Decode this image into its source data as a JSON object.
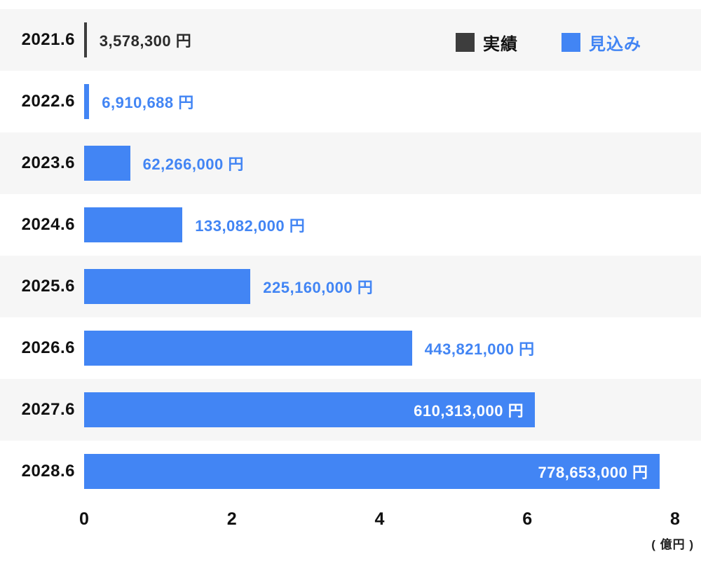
{
  "chart_data": {
    "type": "bar",
    "orientation": "horizontal",
    "title": "",
    "categories": [
      "2021.6",
      "2022.6",
      "2023.6",
      "2024.6",
      "2025.6",
      "2026.6",
      "2027.6",
      "2028.6"
    ],
    "values": [
      3578300,
      6910688,
      62266000,
      133082000,
      225160000,
      443821000,
      610313000,
      778653000
    ],
    "rows": [
      {
        "category": "2021.6",
        "value_yen": 3578300,
        "label": "3,578,300 円",
        "series": "実績",
        "label_position": "outside",
        "label_color_key": "label_actual"
      },
      {
        "category": "2022.6",
        "value_yen": 6910688,
        "label": "6,910,688 円",
        "series": "見込み",
        "label_position": "outside",
        "label_color_key": "label_forecast"
      },
      {
        "category": "2023.6",
        "value_yen": 62266000,
        "label": "62,266,000 円",
        "series": "見込み",
        "label_position": "outside",
        "label_color_key": "label_forecast"
      },
      {
        "category": "2024.6",
        "value_yen": 133082000,
        "label": "133,082,000 円",
        "series": "見込み",
        "label_position": "outside",
        "label_color_key": "label_forecast"
      },
      {
        "category": "2025.6",
        "value_yen": 225160000,
        "label": "225,160,000 円",
        "series": "見込み",
        "label_position": "outside",
        "label_color_key": "label_forecast"
      },
      {
        "category": "2026.6",
        "value_yen": 443821000,
        "label": "443,821,000 円",
        "series": "見込み",
        "label_position": "outside",
        "label_color_key": "label_forecast"
      },
      {
        "category": "2027.6",
        "value_yen": 610313000,
        "label": "610,313,000 円",
        "series": "見込み",
        "label_position": "inside",
        "label_color_key": "label_inside"
      },
      {
        "category": "2028.6",
        "value_yen": 778653000,
        "label": "778,653,000 円",
        "series": "見込み",
        "label_position": "inside",
        "label_color_key": "label_inside"
      }
    ],
    "legend": {
      "position": "top-right",
      "items": [
        {
          "label": "実績",
          "color": "#3d3d3d",
          "text_color": "#111111"
        },
        {
          "label": "見込み",
          "color": "#4285f4",
          "text_color": "#4285f4"
        }
      ]
    },
    "axis": {
      "ticks": [
        "0",
        "2",
        "4",
        "6",
        "8"
      ],
      "min_yen": 0,
      "max_yen": 800000000,
      "unit_label": "( 億円 )",
      "grid": false
    },
    "colors": {
      "actual_bar": "#3d3d3d",
      "forecast_bar": "#4285f4",
      "label_actual": "#2b2b2b",
      "label_forecast": "#4285f4",
      "label_inside": "#ffffff",
      "stripe": "#f6f6f6"
    }
  }
}
